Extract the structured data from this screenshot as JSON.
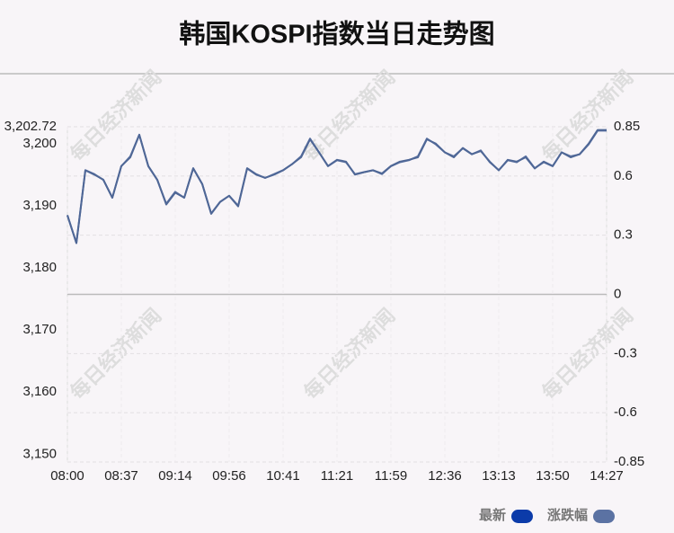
{
  "chart_data": {
    "type": "line",
    "title": "韩国KOSPI指数当日走势图",
    "watermark": "每日经济新闻",
    "categories": [
      "08:00",
      null,
      null,
      null,
      null,
      null,
      "08:37",
      null,
      null,
      null,
      null,
      null,
      "09:14",
      null,
      null,
      null,
      null,
      null,
      "09:56",
      null,
      null,
      null,
      null,
      null,
      "10:41",
      null,
      null,
      null,
      null,
      null,
      "11:21",
      null,
      null,
      null,
      null,
      null,
      "11:59",
      null,
      null,
      null,
      null,
      null,
      "12:36",
      null,
      null,
      null,
      null,
      null,
      "13:13",
      null,
      null,
      null,
      null,
      null,
      "13:50",
      null,
      null,
      null,
      null,
      null,
      "14:27"
    ],
    "series": [
      {
        "name": "最新",
        "color": "#0b3ba9",
        "line_color": "#4f6796",
        "values": [
          3188.5,
          3184,
          3195.7,
          3195,
          3194.2,
          3191.3,
          3196.4,
          3197.8,
          3201.4,
          3196.4,
          3194.2,
          3190.2,
          3192.1,
          3191.3,
          3196,
          3193.5,
          3188.7,
          3190.6,
          3191.6,
          3189.9,
          3196,
          3195,
          3194.5,
          3195,
          3195.7,
          3196.7,
          3197.8,
          3200.7,
          3198.6,
          3196.4,
          3197.4,
          3197.1,
          3195,
          3195.4,
          3195.7,
          3195.2,
          3196.4,
          3197.1,
          3197.4,
          3197.8,
          3200.7,
          3200,
          3198.6,
          3197.8,
          3199.3,
          3198.3,
          3198.8,
          3197.1,
          3195.7,
          3197.4,
          3197.1,
          3197.8,
          3196,
          3197.1,
          3196.4,
          3198.6,
          3197.8,
          3198.3,
          3200,
          3202.2,
          3202.2
        ]
      },
      {
        "name": "涨跌幅",
        "color": "#5b72a3",
        "axis": "y2",
        "values": [
          0.4,
          0.26,
          0.63,
          0.61,
          0.58,
          0.49,
          0.65,
          0.7,
          0.81,
          0.65,
          0.58,
          0.46,
          0.52,
          0.49,
          0.64,
          0.56,
          0.41,
          0.47,
          0.5,
          0.45,
          0.64,
          0.61,
          0.59,
          0.61,
          0.63,
          0.66,
          0.7,
          0.79,
          0.72,
          0.65,
          0.68,
          0.67,
          0.61,
          0.62,
          0.63,
          0.61,
          0.65,
          0.67,
          0.68,
          0.7,
          0.79,
          0.76,
          0.72,
          0.7,
          0.74,
          0.71,
          0.73,
          0.67,
          0.63,
          0.68,
          0.67,
          0.7,
          0.64,
          0.67,
          0.65,
          0.72,
          0.7,
          0.71,
          0.76,
          0.83,
          0.83
        ]
      }
    ],
    "ylim": [
      3148.74,
      3202.72
    ],
    "yticks": [
      {
        "value": 3150,
        "label": "3,150"
      },
      {
        "value": 3160,
        "label": "3,160"
      },
      {
        "value": 3170,
        "label": "3,170"
      },
      {
        "value": 3180,
        "label": "3,180"
      },
      {
        "value": 3190,
        "label": "3,190"
      },
      {
        "value": 3200,
        "label": "3,200"
      },
      {
        "value": 3202.72,
        "label": "3,202.72"
      }
    ],
    "y2lim": [
      -0.85,
      0.85
    ],
    "y2ticks": [
      -0.85,
      -0.6,
      -0.3,
      0,
      0.3,
      0.6,
      0.85
    ],
    "grid": true
  }
}
